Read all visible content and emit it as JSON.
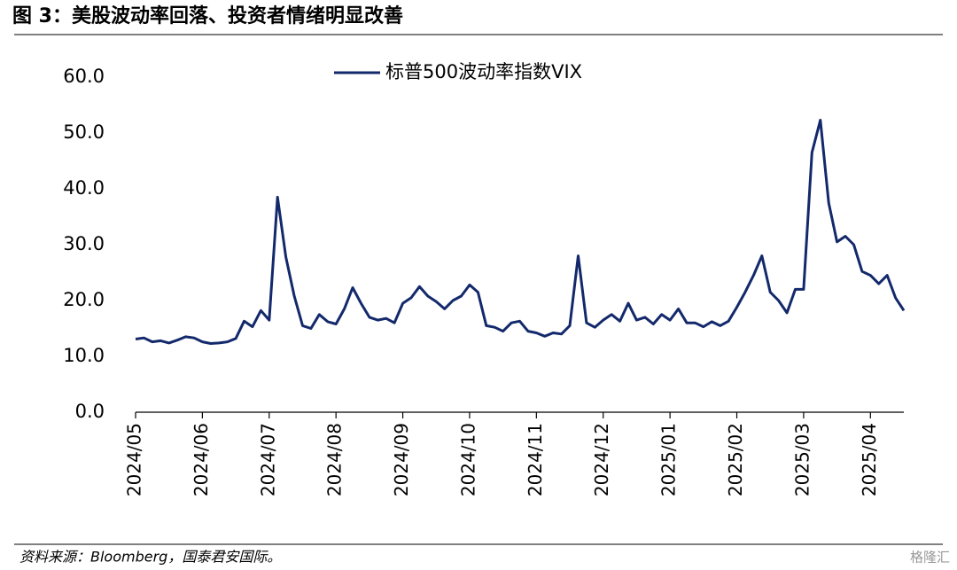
{
  "chart_data": {
    "type": "line",
    "title": "图 3：美股波动率回落、投资者情绪明显改善",
    "source": "资料来源：Bloomberg，国泰君安国际。",
    "watermark": "格隆汇",
    "categories": [
      "2024/05",
      null,
      null,
      null,
      null,
      null,
      null,
      null,
      "2024/06",
      null,
      null,
      null,
      null,
      null,
      null,
      null,
      "2024/07",
      null,
      null,
      null,
      null,
      null,
      null,
      null,
      "2024/08",
      null,
      null,
      null,
      null,
      null,
      null,
      null,
      "2024/09",
      null,
      null,
      null,
      null,
      null,
      null,
      null,
      "2024/10",
      null,
      null,
      null,
      null,
      null,
      null,
      null,
      "2024/11",
      null,
      null,
      null,
      null,
      null,
      null,
      null,
      "2024/12",
      null,
      null,
      null,
      null,
      null,
      null,
      null,
      "2025/01",
      null,
      null,
      null,
      null,
      null,
      null,
      null,
      "2025/02",
      null,
      null,
      null,
      null,
      null,
      null,
      null,
      "2025/03",
      null,
      null,
      null,
      null,
      null,
      null,
      null,
      "2025/04",
      null,
      null,
      null,
      null
    ],
    "series": [
      {
        "name": "标普500波动率指数VIX",
        "color": "#13296b",
        "values": [
          13.1,
          13.3,
          12.6,
          12.8,
          12.4,
          12.9,
          13.5,
          13.3,
          12.6,
          12.3,
          12.4,
          12.6,
          13.2,
          16.3,
          15.3,
          18.2,
          16.5,
          38.5,
          27.8,
          20.8,
          15.5,
          15.0,
          17.5,
          16.2,
          15.8,
          18.5,
          22.3,
          19.5,
          17.0,
          16.5,
          16.8,
          16.0,
          19.5,
          20.5,
          22.5,
          20.8,
          19.8,
          18.5,
          20.0,
          20.8,
          22.8,
          21.5,
          15.5,
          15.2,
          14.5,
          16.0,
          16.3,
          14.5,
          14.2,
          13.6,
          14.2,
          14.0,
          15.5,
          28.0,
          16.0,
          15.2,
          16.5,
          17.5,
          16.3,
          19.5,
          16.5,
          17.0,
          15.8,
          17.5,
          16.5,
          18.5,
          16.0,
          16.0,
          15.3,
          16.2,
          15.5,
          16.3,
          18.8,
          21.5,
          24.5,
          28.0,
          21.5,
          20.0,
          17.8,
          22.0,
          22.0,
          46.5,
          52.3,
          37.5,
          30.5,
          31.5,
          30.0,
          25.2,
          24.5,
          23.0,
          24.5,
          20.5,
          18.2
        ]
      }
    ],
    "ylim": [
      0,
      60
    ],
    "yticks": [
      {
        "value": 0,
        "label": "0.0"
      },
      {
        "value": 10,
        "label": "10.0"
      },
      {
        "value": 20,
        "label": "20.0"
      },
      {
        "value": 30,
        "label": "30.0"
      },
      {
        "value": 40,
        "label": "40.0"
      },
      {
        "value": 50,
        "label": "50.0"
      },
      {
        "value": 60,
        "label": "60.0"
      }
    ]
  }
}
